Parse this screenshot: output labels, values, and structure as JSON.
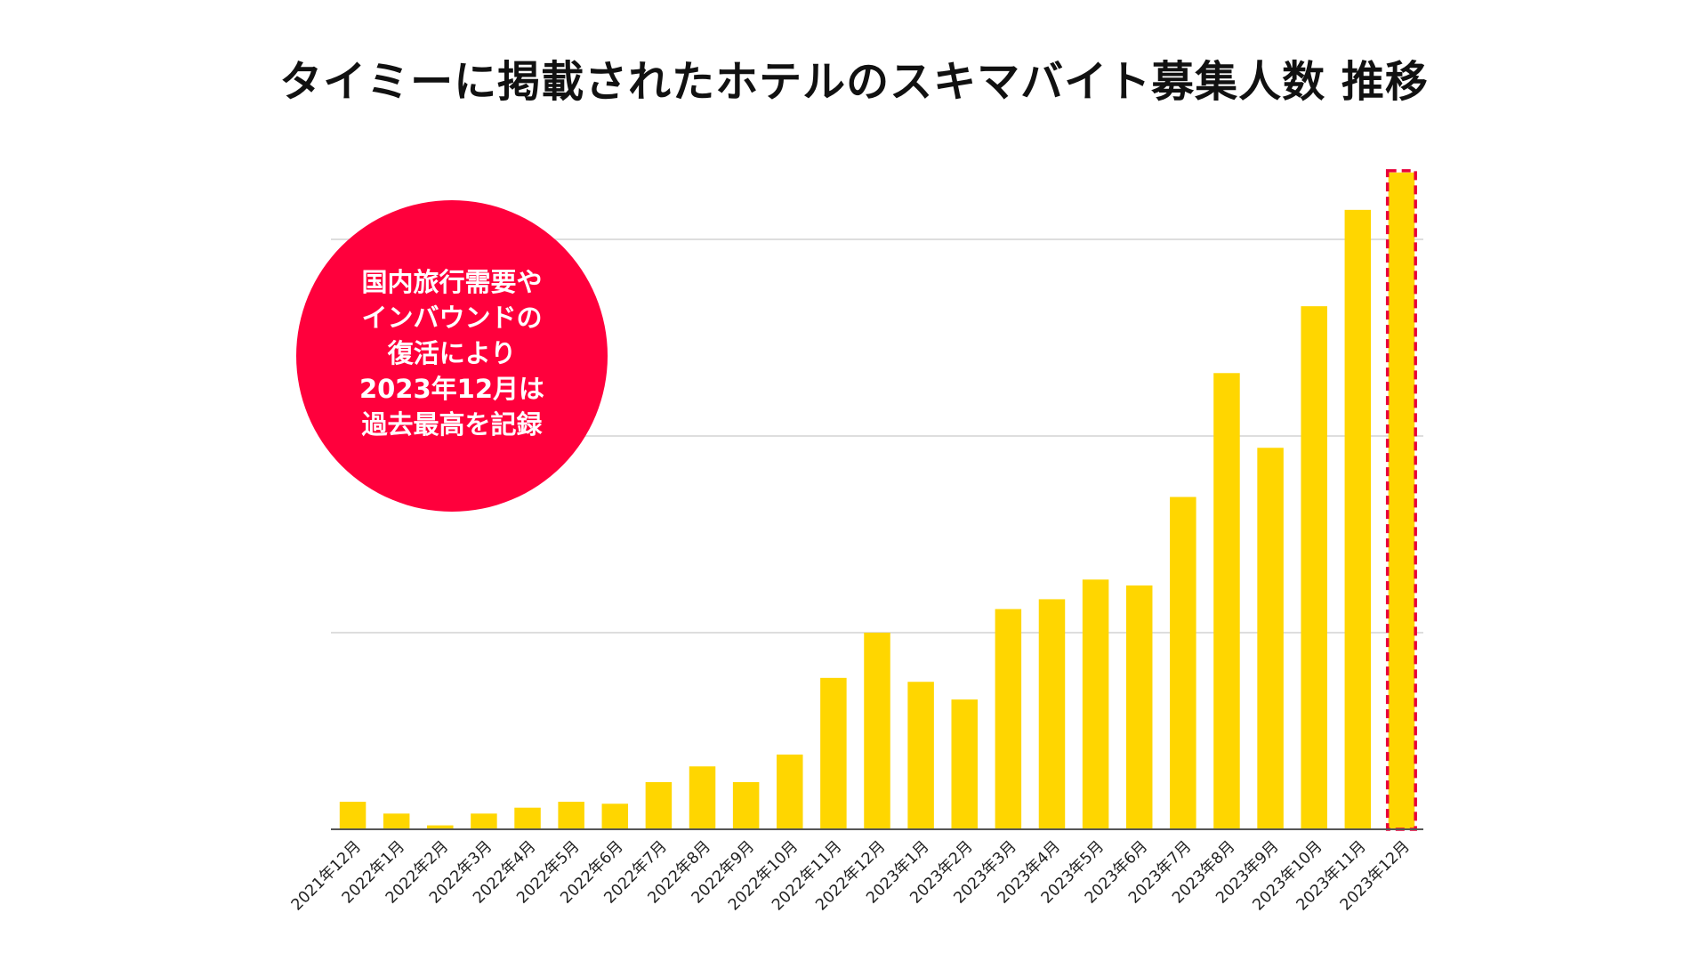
{
  "colors": {
    "bar": "#ffd600",
    "highlight_border": "#e8003a",
    "callout_bg": "#ff003c",
    "grid": "#d4d4d4",
    "axis": "#555555",
    "text": "#111111"
  },
  "callout": {
    "lines": [
      "国内旅行需要や",
      "インバウンドの",
      "復活により",
      "2023年12月は",
      "過去最高を記録"
    ]
  },
  "chart_data": {
    "type": "bar",
    "title": "タイミーに掲載されたホテルのスキマバイト募集人数 推移",
    "xlabel": "",
    "ylabel": "",
    "y_axis_labels_shown": false,
    "grid": true,
    "ylim": [
      0,
      3.4
    ],
    "yticks": [
      0,
      1,
      2,
      3
    ],
    "highlighted_category": "2023年12月",
    "categories": [
      "2021年12月",
      "2022年1月",
      "2022年2月",
      "2022年3月",
      "2022年4月",
      "2022年5月",
      "2022年6月",
      "2022年7月",
      "2022年8月",
      "2022年9月",
      "2022年10月",
      "2022年11月",
      "2022年12月",
      "2023年1月",
      "2023年2月",
      "2023年3月",
      "2023年4月",
      "2023年5月",
      "2023年6月",
      "2023年7月",
      "2023年8月",
      "2023年9月",
      "2023年10月",
      "2023年11月",
      "2023年12月"
    ],
    "values": [
      0.14,
      0.08,
      0.02,
      0.08,
      0.11,
      0.14,
      0.13,
      0.24,
      0.32,
      0.24,
      0.38,
      0.77,
      1.0,
      0.75,
      0.66,
      1.12,
      1.17,
      1.27,
      1.24,
      1.69,
      2.32,
      1.94,
      2.66,
      3.15,
      3.34
    ]
  }
}
